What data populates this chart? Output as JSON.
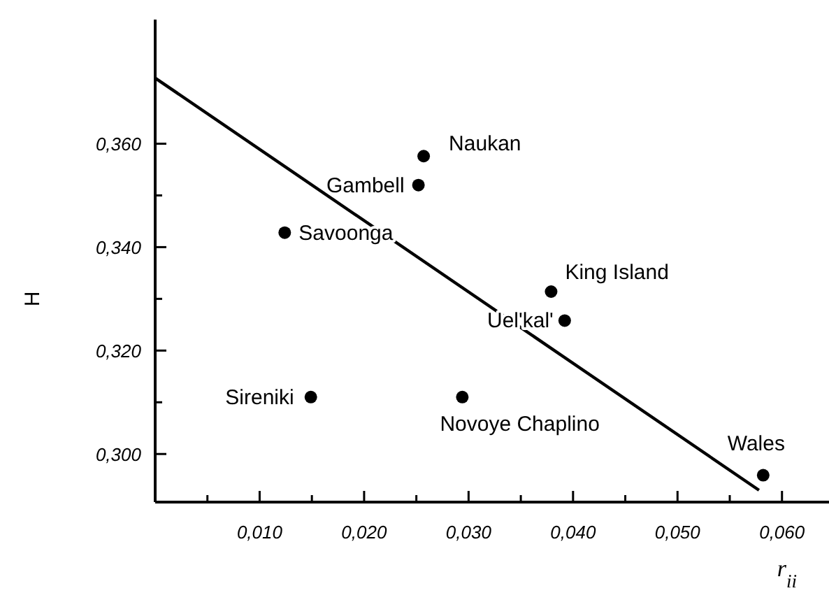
{
  "chart_data": {
    "type": "scatter",
    "xlabel": "r$_{ii}$",
    "ylabel": "H",
    "xlim": [
      0,
      0.0645
    ],
    "ylim": [
      0.2907,
      0.384
    ],
    "xticks": [
      {
        "value": 0.005,
        "label": null
      },
      {
        "value": 0.01,
        "label": "0,010"
      },
      {
        "value": 0.015,
        "label": null
      },
      {
        "value": 0.02,
        "label": "0,020"
      },
      {
        "value": 0.025,
        "label": null
      },
      {
        "value": 0.03,
        "label": "0,030"
      },
      {
        "value": 0.035,
        "label": null
      },
      {
        "value": 0.04,
        "label": "0,040"
      },
      {
        "value": 0.045,
        "label": null
      },
      {
        "value": 0.05,
        "label": "0,050"
      },
      {
        "value": 0.055,
        "label": null
      },
      {
        "value": 0.06,
        "label": "0,060"
      }
    ],
    "yticks": [
      {
        "value": 0.3,
        "label": "0,300"
      },
      {
        "value": 0.31,
        "label": null
      },
      {
        "value": 0.32,
        "label": "0,320"
      },
      {
        "value": 0.33,
        "label": null
      },
      {
        "value": 0.34,
        "label": "0,340"
      },
      {
        "value": 0.35,
        "label": null
      },
      {
        "value": 0.36,
        "label": "0,360"
      }
    ],
    "grid": false,
    "series": [
      {
        "marker": "circle",
        "color": "#000000",
        "x": [
          0.0257,
          0.0252,
          0.0124,
          0.0379,
          0.0392,
          0.0149,
          0.0294,
          0.0582
        ],
        "values": [
          0.3576,
          0.352,
          0.3428,
          0.3314,
          0.3258,
          0.311,
          0.311,
          0.2959
        ]
      },
      {
        "type": "line",
        "color": "#000000",
        "x": [
          0,
          0.0578
        ],
        "values": [
          0.3727,
          0.293
        ],
        "marker": "none",
        "line_style": "solid"
      }
    ],
    "annotations": [
      {
        "text": "Naukan",
        "x": 0.0257,
        "y": 0.3576
      },
      {
        "text": "Gambell",
        "x": 0.0252,
        "y": 0.352
      },
      {
        "text": "Savoonga",
        "x": 0.0124,
        "y": 0.3428
      },
      {
        "text": "King Island",
        "x": 0.0379,
        "y": 0.3314
      },
      {
        "text": "Uel'kal'",
        "x": 0.0392,
        "y": 0.3258
      },
      {
        "text": "Sireniki",
        "x": 0.0149,
        "y": 0.311
      },
      {
        "text": "Novoye Chaplino",
        "x": 0.0294,
        "y": 0.311
      },
      {
        "text": "Wales",
        "x": 0.0582,
        "y": 0.2959
      }
    ]
  }
}
